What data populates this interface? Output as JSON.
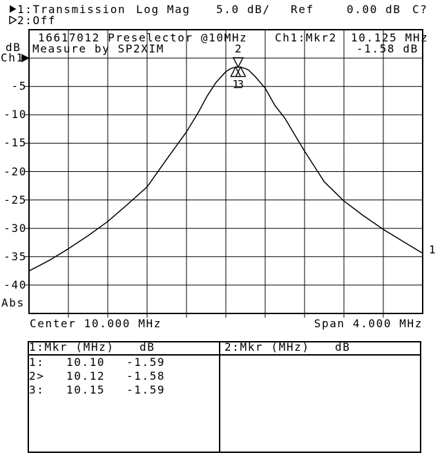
{
  "colors": {
    "fg": "#000000",
    "bg": "#ffffff"
  },
  "header": {
    "trace1": {
      "marker_icon": "filled-right-triangle",
      "label": "1:Transmission",
      "format": "Log Mag",
      "scale": "5.0 dB/",
      "ref_word": "Ref",
      "ref_value": "0.00 dB",
      "status": "C?"
    },
    "trace2": {
      "marker_icon": "hollow-right-triangle",
      "label": "2:Off"
    }
  },
  "y_axis": {
    "unit": "dB",
    "channel": "Ch1",
    "mode": "Abs",
    "tick_labels": [
      "-5",
      "-10",
      "-15",
      "-20",
      "-25",
      "-30",
      "-35",
      "-40"
    ]
  },
  "x_axis": {
    "center_label": "Center 10.000 MHz",
    "span_label": "Span 4.000 MHz"
  },
  "graph_annotations": {
    "line1": "16617012 Preselector @10MHz",
    "line2": "Measure by SP2XIM",
    "readout_channel": "Ch1:Mkr2",
    "readout_freq": "10.125 MHz",
    "readout_value": "-1.58 dB",
    "trace_end_label": "1"
  },
  "chart_data": {
    "type": "line",
    "title": "16617012 Preselector @10MHz",
    "subtitle": "Measure by SP2XIM",
    "x_center_mhz": 10.0,
    "x_span_mhz": 4.0,
    "x_range_mhz": [
      8.0,
      12.0
    ],
    "y_unit": "dB",
    "y_per_div": 5,
    "y_ref_db": 0.0,
    "y_ref_divs_from_top": 1,
    "y_range_db": [
      -45,
      5
    ],
    "grid_divisions": [
      10,
      10
    ],
    "series": [
      {
        "name": "1:Transmission",
        "points": [
          [
            8.0,
            -37.5
          ],
          [
            8.2,
            -35.7
          ],
          [
            8.4,
            -33.6
          ],
          [
            8.6,
            -31.3
          ],
          [
            8.8,
            -28.8
          ],
          [
            9.0,
            -25.8
          ],
          [
            9.2,
            -22.7
          ],
          [
            9.4,
            -17.8
          ],
          [
            9.6,
            -13.0
          ],
          [
            9.72,
            -9.6
          ],
          [
            9.81,
            -6.7
          ],
          [
            9.9,
            -4.3
          ],
          [
            10.0,
            -2.4
          ],
          [
            10.05,
            -1.85
          ],
          [
            10.1,
            -1.59
          ],
          [
            10.125,
            -1.58
          ],
          [
            10.15,
            -1.59
          ],
          [
            10.2,
            -1.85
          ],
          [
            10.23,
            -2.1
          ],
          [
            10.3,
            -3.3
          ],
          [
            10.4,
            -5.3
          ],
          [
            10.5,
            -8.4
          ],
          [
            10.6,
            -10.6
          ],
          [
            10.7,
            -13.5
          ],
          [
            10.8,
            -16.4
          ],
          [
            10.9,
            -19.1
          ],
          [
            11.0,
            -21.8
          ],
          [
            11.2,
            -25.2
          ],
          [
            11.4,
            -27.8
          ],
          [
            11.6,
            -30.2
          ],
          [
            11.8,
            -32.3
          ],
          [
            12.0,
            -34.4
          ]
        ]
      }
    ],
    "markers": [
      {
        "label": "1",
        "freq_mhz": 10.1,
        "db": -1.59,
        "symbol": "triangle-up",
        "active": false
      },
      {
        "label": "2",
        "freq_mhz": 10.125,
        "db": -1.58,
        "symbol": "triangle-down",
        "active": true
      },
      {
        "label": "3",
        "freq_mhz": 10.15,
        "db": -1.59,
        "symbol": "triangle-up",
        "active": false
      }
    ]
  },
  "marker_table": {
    "left": {
      "header_label": "1:Mkr (MHz)",
      "header_unit": "dB",
      "rows": [
        {
          "num": "1:",
          "freq": "10.10",
          "db": "-1.59"
        },
        {
          "num": "2>",
          "freq": "10.12",
          "db": "-1.58"
        },
        {
          "num": "3:",
          "freq": "10.15",
          "db": "-1.59"
        }
      ]
    },
    "right": {
      "header_label": "2:Mkr (MHz)",
      "header_unit": "dB",
      "rows": []
    }
  }
}
